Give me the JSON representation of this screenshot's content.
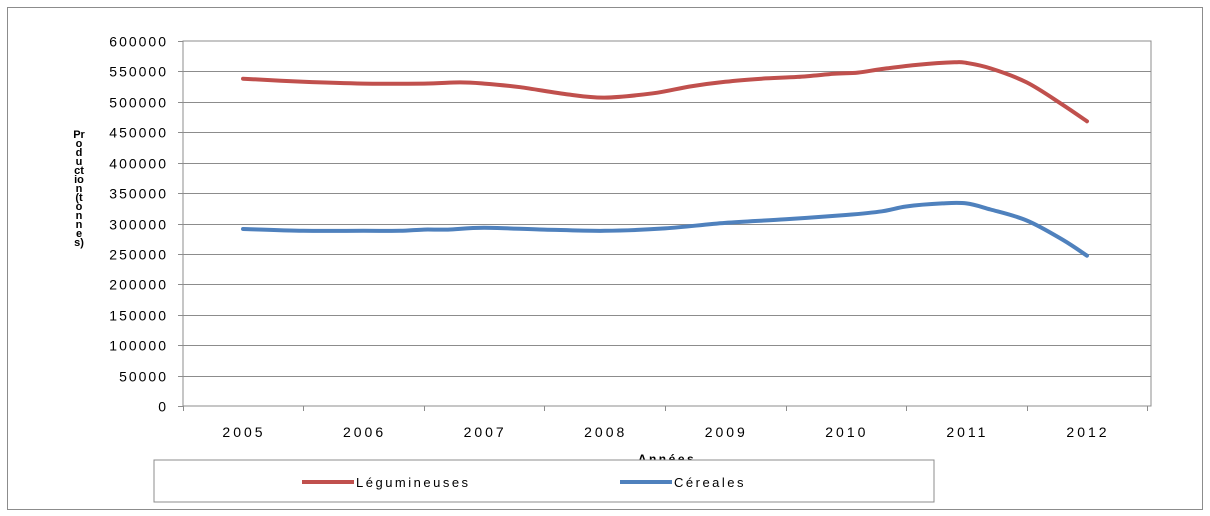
{
  "chart_data": {
    "type": "line",
    "title": "",
    "xlabel": "Années",
    "ylabel": "Production (tonnes)",
    "ylim": [
      0,
      600000
    ],
    "yticks": [
      "0",
      "50000",
      "100000",
      "150000",
      "200000",
      "250000",
      "300000",
      "350000",
      "400000",
      "450000",
      "500000",
      "550000",
      "600000"
    ],
    "xlim": [
      2005,
      2012
    ],
    "xticks": [
      "2005",
      "2006",
      "2007",
      "2008",
      "2009",
      "2010",
      "2011",
      "2012"
    ],
    "grid": "horizontal",
    "legend_position": "bottom",
    "series": [
      {
        "name": "Légumineuses",
        "color": "#c0504d",
        "x": [
          2005,
          2005.5,
          2006,
          2006.5,
          2006.8,
          2007,
          2007.3,
          2007.7,
          2008,
          2008.4,
          2008.7,
          2009,
          2009.3,
          2009.6,
          2009.9,
          2010.1,
          2010.3,
          2010.6,
          2010.9,
          2011,
          2011.2,
          2011.5,
          2011.8,
          2012
        ],
        "values": [
          538000,
          533000,
          530000,
          530000,
          532000,
          530000,
          524000,
          512000,
          507000,
          514000,
          525000,
          533000,
          538000,
          541000,
          546000,
          548000,
          554000,
          561000,
          565000,
          564000,
          555000,
          532000,
          495000,
          468000
        ]
      },
      {
        "name": "Céreales",
        "color": "#4f81bd",
        "x": [
          2005,
          2005.5,
          2006,
          2006.3,
          2006.5,
          2006.7,
          2007,
          2007.5,
          2008,
          2008.5,
          2009,
          2009.5,
          2010,
          2010.3,
          2010.5,
          2010.8,
          2011,
          2011.2,
          2011.5,
          2011.8,
          2012
        ],
        "values": [
          291000,
          288000,
          288000,
          288000,
          290000,
          290000,
          293000,
          290000,
          288000,
          292000,
          301000,
          307000,
          314000,
          320000,
          328000,
          333000,
          333000,
          323000,
          305000,
          273000,
          247000
        ]
      }
    ]
  }
}
